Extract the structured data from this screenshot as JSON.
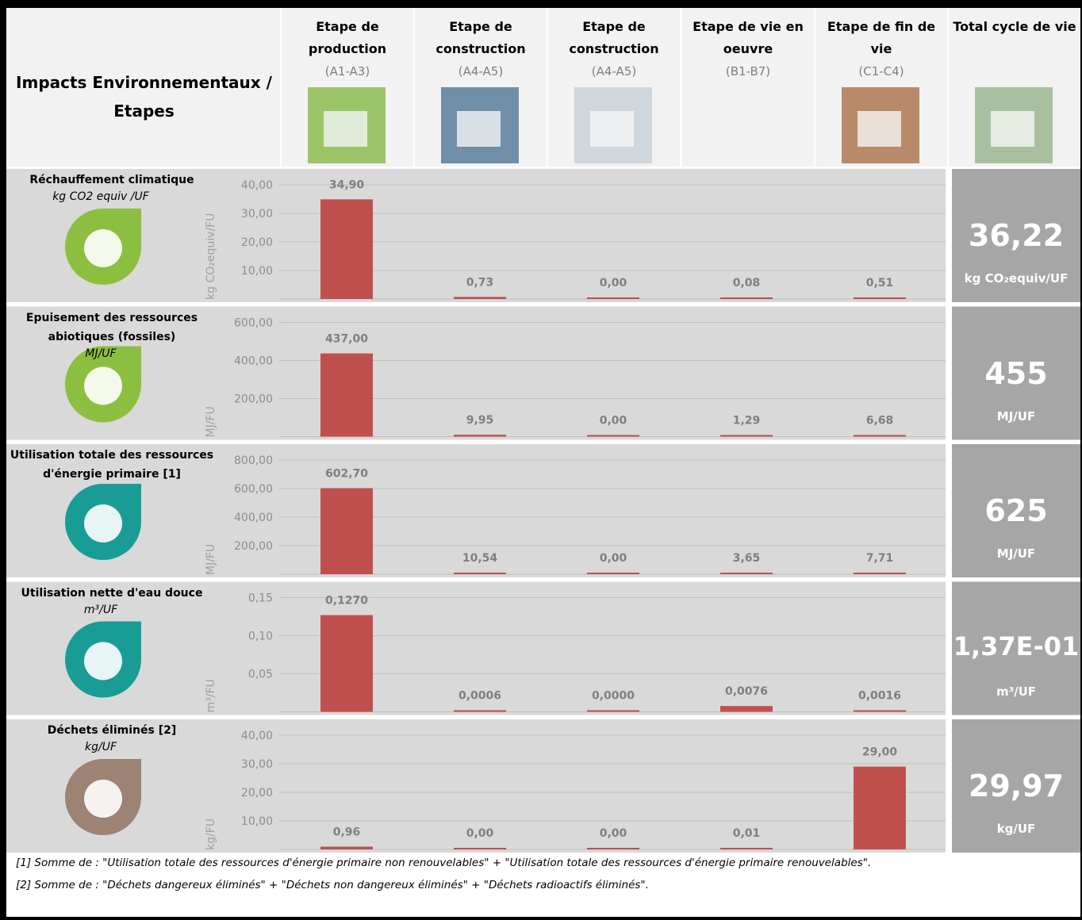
{
  "header": {
    "title": "Impacts Environnementaux / Etapes",
    "stages": [
      {
        "title": "Etape de production",
        "code": "(A1-A3)"
      },
      {
        "title": "Etape de construction",
        "code": "(A4-A5)"
      },
      {
        "title": "Etape de construction",
        "code": "(A4-A5)"
      },
      {
        "title": "Etape de vie en oeuvre",
        "code": "(B1-B7)"
      },
      {
        "title": "Etape de fin de vie",
        "code": "(C1-C4)"
      },
      {
        "title": "Total cycle de vie"
      }
    ]
  },
  "rows": [
    {
      "title": "Réchauffement climatique",
      "unit": "kg CO2 equiv /UF",
      "axis_title": "kg CO₂equiv/FU",
      "ylim": [
        0,
        40
      ],
      "yticks": [
        {
          "value": 10,
          "label": "10,00"
        },
        {
          "value": 20,
          "label": "20,00"
        },
        {
          "value": 30,
          "label": "30,00"
        },
        {
          "value": 40,
          "label": "40,00"
        }
      ],
      "values": [
        34.9,
        0.73,
        0,
        0.08,
        0.51
      ],
      "value_labels": [
        "34,90",
        "0,73",
        "0,00",
        "0,08",
        "0,51"
      ],
      "total": {
        "value": 36.22,
        "label": "36,22"
      },
      "total_unit": "kg CO₂equiv/UF",
      "color": "#8cbf3f"
    },
    {
      "title": "Epuisement des ressources abiotiques (fossiles)",
      "unit": "MJ/UF",
      "axis_title": "MJ/FU",
      "ylim": [
        0,
        600
      ],
      "yticks": [
        {
          "value": 200,
          "label": "200,00"
        },
        {
          "value": 400,
          "label": "400,00"
        },
        {
          "value": 600,
          "label": "600,00"
        }
      ],
      "values": [
        437,
        9.95,
        0,
        1.29,
        6.68
      ],
      "value_labels": [
        "437,00",
        "9,95",
        "0,00",
        "1,29",
        "6,68"
      ],
      "total": 455,
      "total_unit": "MJ/UF",
      "color": "#8cbf3f"
    },
    {
      "title": "Utilisation totale des ressources d'énergie primaire [1]",
      "unit": "",
      "axis_title": "MJ/FU",
      "ylim": [
        0,
        800
      ],
      "yticks": [
        {
          "value": 200,
          "label": "200,00"
        },
        {
          "value": 400,
          "label": "400,00"
        },
        {
          "value": 600,
          "label": "600,00"
        },
        {
          "value": 800,
          "label": "800,00"
        }
      ],
      "values": [
        602.7,
        10.54,
        0,
        3.65,
        7.71
      ],
      "value_labels": [
        "602,70",
        "10,54",
        "0,00",
        "3,65",
        "7,71"
      ],
      "total": 625,
      "total_unit": "MJ/UF",
      "color": "#1a9c96"
    },
    {
      "title": "Utilisation nette d'eau douce",
      "unit": "m³/UF",
      "axis_title": "m³/FU",
      "ylim": [
        0,
        0.15
      ],
      "yticks": [
        {
          "value": 0.05,
          "label": "0,05"
        },
        {
          "value": 0.1,
          "label": "0,10"
        },
        {
          "value": 0.15,
          "label": "0,15"
        }
      ],
      "values": [
        0.127,
        0.0006,
        0,
        0.0076,
        0.0016
      ],
      "value_labels": [
        "0,1270",
        "0,0006",
        "0,0000",
        "0,0076",
        "0,0016"
      ],
      "total": {
        "value": 0.137,
        "label": "1,37E-01"
      },
      "total_unit": "m³/UF",
      "color": "#1a9c96"
    },
    {
      "title": "Déchets éliminés [2]",
      "unit": "kg/UF",
      "axis_title": "kg/FU",
      "ylim": [
        0,
        40
      ],
      "yticks": [
        {
          "value": 10,
          "label": "10,00"
        },
        {
          "value": 20,
          "label": "20,00"
        },
        {
          "value": 30,
          "label": "30,00"
        },
        {
          "value": 40,
          "label": "40,00"
        }
      ],
      "values": [
        0.96,
        0,
        0,
        0.01,
        29
      ],
      "value_labels": [
        "0,96",
        "0,00",
        "0,00",
        "0,01",
        "29,00"
      ],
      "total": {
        "value": 29.97,
        "label": "29,97"
      },
      "total_unit": "kg/UF",
      "color": "#9c8374"
    }
  ],
  "bar_color": "#c0504d",
  "footnotes": [
    "[1] Somme de : \"Utilisation totale des ressources d'énergie primaire non renouvelables\" + \"Utilisation totale des ressources d'énergie primaire renouvelables\".",
    "[2] Somme de : \"Déchets dangereux éliminés\" + \"Déchets non dangereux éliminés\" + \"Déchets radioactifs éliminés\"."
  ]
}
